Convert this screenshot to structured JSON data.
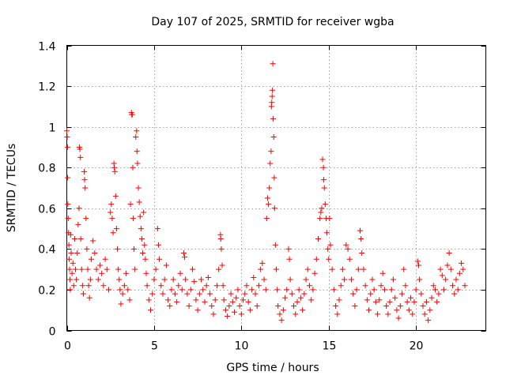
{
  "chart_data": {
    "type": "scatter",
    "title": "Day 107 of 2025, SRMTID for receiver wgba",
    "xlabel": "GPS time / hours",
    "ylabel": "SRMTID / TECUs",
    "xlim": [
      0,
      24
    ],
    "ylim": [
      0,
      1.4
    ],
    "xticks": [
      0,
      5,
      10,
      15,
      20
    ],
    "xtick_labels": [
      "0",
      "5",
      "10",
      "15",
      "20"
    ],
    "yticks": [
      0,
      0.2,
      0.4,
      0.6,
      0.8,
      1,
      1.2,
      1.4
    ],
    "ytick_labels": [
      "0",
      "0.2",
      "0.4",
      "0.6",
      "0.8",
      "1",
      "1.2",
      "1.4"
    ],
    "grid": true,
    "marker": "+",
    "color": "#ff0000",
    "series": [
      {
        "name": "SRMTID",
        "points": [
          [
            0.0,
            0.98
          ],
          [
            0.02,
            0.95
          ],
          [
            0.04,
            0.9
          ],
          [
            0.05,
            0.75
          ],
          [
            0.06,
            0.62
          ],
          [
            0.08,
            0.55
          ],
          [
            0.1,
            0.48
          ],
          [
            0.12,
            0.42
          ],
          [
            0.14,
            0.35
          ],
          [
            0.16,
            0.3
          ],
          [
            0.18,
            0.25
          ],
          [
            0.2,
            0.2
          ],
          [
            0.22,
            0.47
          ],
          [
            0.25,
            0.38
          ],
          [
            0.3,
            0.28
          ],
          [
            0.35,
            0.33
          ],
          [
            0.4,
            0.22
          ],
          [
            0.45,
            0.45
          ],
          [
            0.5,
            0.3
          ],
          [
            0.55,
            0.25
          ],
          [
            0.6,
            0.38
          ],
          [
            0.65,
            0.52
          ],
          [
            0.7,
            0.6
          ],
          [
            0.72,
            0.9
          ],
          [
            0.75,
            0.89
          ],
          [
            0.78,
            0.85
          ],
          [
            0.8,
            0.45
          ],
          [
            0.85,
            0.3
          ],
          [
            0.9,
            0.22
          ],
          [
            0.95,
            0.18
          ],
          [
            1.0,
            0.78
          ],
          [
            1.02,
            0.74
          ],
          [
            1.05,
            0.7
          ],
          [
            1.1,
            0.55
          ],
          [
            1.15,
            0.4
          ],
          [
            1.2,
            0.3
          ],
          [
            1.25,
            0.22
          ],
          [
            1.3,
            0.16
          ],
          [
            1.35,
            0.25
          ],
          [
            1.4,
            0.35
          ],
          [
            1.5,
            0.44
          ],
          [
            1.6,
            0.38
          ],
          [
            1.7,
            0.3
          ],
          [
            1.8,
            0.25
          ],
          [
            1.9,
            0.32
          ],
          [
            2.0,
            0.28
          ],
          [
            2.1,
            0.22
          ],
          [
            2.2,
            0.35
          ],
          [
            2.3,
            0.3
          ],
          [
            2.4,
            0.2
          ],
          [
            2.5,
            0.58
          ],
          [
            2.55,
            0.62
          ],
          [
            2.6,
            0.55
          ],
          [
            2.65,
            0.48
          ],
          [
            2.7,
            0.82
          ],
          [
            2.72,
            0.8
          ],
          [
            2.75,
            0.78
          ],
          [
            2.8,
            0.66
          ],
          [
            2.85,
            0.5
          ],
          [
            2.9,
            0.4
          ],
          [
            2.95,
            0.3
          ],
          [
            3.0,
            0.25
          ],
          [
            3.05,
            0.2
          ],
          [
            3.1,
            0.13
          ],
          [
            3.2,
            0.18
          ],
          [
            3.3,
            0.22
          ],
          [
            3.4,
            0.28
          ],
          [
            3.5,
            0.2
          ],
          [
            3.6,
            0.15
          ],
          [
            3.65,
            0.62
          ],
          [
            3.7,
            1.07
          ],
          [
            3.72,
            1.06
          ],
          [
            3.75,
            1.06
          ],
          [
            3.78,
            0.8
          ],
          [
            3.8,
            0.55
          ],
          [
            3.85,
            0.4
          ],
          [
            3.9,
            0.3
          ],
          [
            3.95,
            0.95
          ],
          [
            4.0,
            0.98
          ],
          [
            4.02,
            0.88
          ],
          [
            4.05,
            0.82
          ],
          [
            4.1,
            0.7
          ],
          [
            4.15,
            0.63
          ],
          [
            4.2,
            0.56
          ],
          [
            4.25,
            0.5
          ],
          [
            4.3,
            0.45
          ],
          [
            4.35,
            0.38
          ],
          [
            4.4,
            0.58
          ],
          [
            4.45,
            0.42
          ],
          [
            4.5,
            0.35
          ],
          [
            4.55,
            0.28
          ],
          [
            4.6,
            0.22
          ],
          [
            4.7,
            0.15
          ],
          [
            4.8,
            0.1
          ],
          [
            4.9,
            0.18
          ],
          [
            5.0,
            0.25
          ],
          [
            5.1,
            0.3
          ],
          [
            5.2,
            0.5
          ],
          [
            5.25,
            0.42
          ],
          [
            5.3,
            0.35
          ],
          [
            5.4,
            0.22
          ],
          [
            5.5,
            0.18
          ],
          [
            5.6,
            0.25
          ],
          [
            5.7,
            0.32
          ],
          [
            5.8,
            0.15
          ],
          [
            5.9,
            0.12
          ],
          [
            6.0,
            0.2
          ],
          [
            6.1,
            0.25
          ],
          [
            6.2,
            0.18
          ],
          [
            6.3,
            0.14
          ],
          [
            6.4,
            0.22
          ],
          [
            6.5,
            0.28
          ],
          [
            6.6,
            0.2
          ],
          [
            6.7,
            0.38
          ],
          [
            6.75,
            0.36
          ],
          [
            6.8,
            0.25
          ],
          [
            6.9,
            0.18
          ],
          [
            7.0,
            0.12
          ],
          [
            7.1,
            0.2
          ],
          [
            7.2,
            0.3
          ],
          [
            7.3,
            0.24
          ],
          [
            7.4,
            0.15
          ],
          [
            7.5,
            0.1
          ],
          [
            7.6,
            0.18
          ],
          [
            7.7,
            0.25
          ],
          [
            7.8,
            0.2
          ],
          [
            7.9,
            0.14
          ],
          [
            8.0,
            0.22
          ],
          [
            8.1,
            0.26
          ],
          [
            8.2,
            0.18
          ],
          [
            8.3,
            0.12
          ],
          [
            8.4,
            0.08
          ],
          [
            8.5,
            0.15
          ],
          [
            8.6,
            0.22
          ],
          [
            8.7,
            0.3
          ],
          [
            8.8,
            0.47
          ],
          [
            8.82,
            0.45
          ],
          [
            8.85,
            0.4
          ],
          [
            8.9,
            0.32
          ],
          [
            8.95,
            0.22
          ],
          [
            9.0,
            0.15
          ],
          [
            9.1,
            0.1
          ],
          [
            9.2,
            0.07
          ],
          [
            9.3,
            0.12
          ],
          [
            9.4,
            0.18
          ],
          [
            9.5,
            0.14
          ],
          [
            9.6,
            0.09
          ],
          [
            9.7,
            0.16
          ],
          [
            9.8,
            0.2
          ],
          [
            9.9,
            0.12
          ],
          [
            10.0,
            0.08
          ],
          [
            10.1,
            0.15
          ],
          [
            10.2,
            0.18
          ],
          [
            10.3,
            0.22
          ],
          [
            10.4,
            0.14
          ],
          [
            10.5,
            0.1
          ],
          [
            10.6,
            0.2
          ],
          [
            10.7,
            0.26
          ],
          [
            10.8,
            0.18
          ],
          [
            10.9,
            0.12
          ],
          [
            11.0,
            0.22
          ],
          [
            11.1,
            0.3
          ],
          [
            11.2,
            0.33
          ],
          [
            11.3,
            0.25
          ],
          [
            11.4,
            0.2
          ],
          [
            11.45,
            0.55
          ],
          [
            11.5,
            0.65
          ],
          [
            11.55,
            0.62
          ],
          [
            11.6,
            0.7
          ],
          [
            11.65,
            0.82
          ],
          [
            11.7,
            0.88
          ],
          [
            11.72,
            1.1
          ],
          [
            11.74,
            1.12
          ],
          [
            11.76,
            1.15
          ],
          [
            11.78,
            1.18
          ],
          [
            11.8,
            1.31
          ],
          [
            11.82,
            1.04
          ],
          [
            11.85,
            0.95
          ],
          [
            11.88,
            0.75
          ],
          [
            11.9,
            0.6
          ],
          [
            11.95,
            0.42
          ],
          [
            12.0,
            0.3
          ],
          [
            12.05,
            0.2
          ],
          [
            12.1,
            0.12
          ],
          [
            12.2,
            0.08
          ],
          [
            12.3,
            0.05
          ],
          [
            12.4,
            0.1
          ],
          [
            12.5,
            0.16
          ],
          [
            12.6,
            0.2
          ],
          [
            12.7,
            0.4
          ],
          [
            12.75,
            0.35
          ],
          [
            12.8,
            0.25
          ],
          [
            12.9,
            0.18
          ],
          [
            13.0,
            0.12
          ],
          [
            13.1,
            0.08
          ],
          [
            13.2,
            0.14
          ],
          [
            13.3,
            0.2
          ],
          [
            13.4,
            0.16
          ],
          [
            13.5,
            0.1
          ],
          [
            13.6,
            0.18
          ],
          [
            13.7,
            0.25
          ],
          [
            13.8,
            0.3
          ],
          [
            13.9,
            0.22
          ],
          [
            14.0,
            0.15
          ],
          [
            14.1,
            0.2
          ],
          [
            14.2,
            0.28
          ],
          [
            14.3,
            0.35
          ],
          [
            14.4,
            0.45
          ],
          [
            14.5,
            0.55
          ],
          [
            14.55,
            0.58
          ],
          [
            14.6,
            0.6
          ],
          [
            14.65,
            0.84
          ],
          [
            14.7,
            0.8
          ],
          [
            14.72,
            0.74
          ],
          [
            14.75,
            0.7
          ],
          [
            14.8,
            0.62
          ],
          [
            14.85,
            0.55
          ],
          [
            14.9,
            0.48
          ],
          [
            14.95,
            0.4
          ],
          [
            15.0,
            0.35
          ],
          [
            15.05,
            0.55
          ],
          [
            15.1,
            0.42
          ],
          [
            15.2,
            0.3
          ],
          [
            15.3,
            0.2
          ],
          [
            15.4,
            0.12
          ],
          [
            15.5,
            0.08
          ],
          [
            15.6,
            0.15
          ],
          [
            15.7,
            0.22
          ],
          [
            15.8,
            0.3
          ],
          [
            15.9,
            0.25
          ],
          [
            16.0,
            0.42
          ],
          [
            16.1,
            0.4
          ],
          [
            16.2,
            0.35
          ],
          [
            16.3,
            0.25
          ],
          [
            16.4,
            0.18
          ],
          [
            16.5,
            0.12
          ],
          [
            16.6,
            0.2
          ],
          [
            16.7,
            0.3
          ],
          [
            16.8,
            0.49
          ],
          [
            16.85,
            0.45
          ],
          [
            16.9,
            0.38
          ],
          [
            17.0,
            0.3
          ],
          [
            17.1,
            0.22
          ],
          [
            17.2,
            0.15
          ],
          [
            17.3,
            0.1
          ],
          [
            17.4,
            0.18
          ],
          [
            17.5,
            0.25
          ],
          [
            17.6,
            0.2
          ],
          [
            17.7,
            0.14
          ],
          [
            17.8,
            0.08
          ],
          [
            17.9,
            0.15
          ],
          [
            18.0,
            0.22
          ],
          [
            18.1,
            0.28
          ],
          [
            18.2,
            0.2
          ],
          [
            18.3,
            0.12
          ],
          [
            18.4,
            0.08
          ],
          [
            18.5,
            0.14
          ],
          [
            18.6,
            0.2
          ],
          [
            18.7,
            0.25
          ],
          [
            18.8,
            0.16
          ],
          [
            18.9,
            0.1
          ],
          [
            19.0,
            0.06
          ],
          [
            19.1,
            0.12
          ],
          [
            19.2,
            0.18
          ],
          [
            19.3,
            0.3
          ],
          [
            19.4,
            0.22
          ],
          [
            19.5,
            0.14
          ],
          [
            19.6,
            0.1
          ],
          [
            19.7,
            0.16
          ],
          [
            19.8,
            0.08
          ],
          [
            19.9,
            0.14
          ],
          [
            20.0,
            0.2
          ],
          [
            20.1,
            0.34
          ],
          [
            20.15,
            0.32
          ],
          [
            20.2,
            0.25
          ],
          [
            20.3,
            0.18
          ],
          [
            20.4,
            0.12
          ],
          [
            20.5,
            0.08
          ],
          [
            20.6,
            0.14
          ],
          [
            20.7,
            0.05
          ],
          [
            20.8,
            0.1
          ],
          [
            20.9,
            0.16
          ],
          [
            21.0,
            0.22
          ],
          [
            21.1,
            0.2
          ],
          [
            21.2,
            0.14
          ],
          [
            21.3,
            0.18
          ],
          [
            21.4,
            0.3
          ],
          [
            21.5,
            0.27
          ],
          [
            21.6,
            0.2
          ],
          [
            21.7,
            0.25
          ],
          [
            21.8,
            0.32
          ],
          [
            21.9,
            0.38
          ],
          [
            22.0,
            0.3
          ],
          [
            22.1,
            0.22
          ],
          [
            22.2,
            0.18
          ],
          [
            22.3,
            0.25
          ],
          [
            22.4,
            0.2
          ],
          [
            22.5,
            0.28
          ],
          [
            22.6,
            0.33
          ],
          [
            22.7,
            0.3
          ],
          [
            22.8,
            0.22
          ]
        ]
      }
    ]
  }
}
